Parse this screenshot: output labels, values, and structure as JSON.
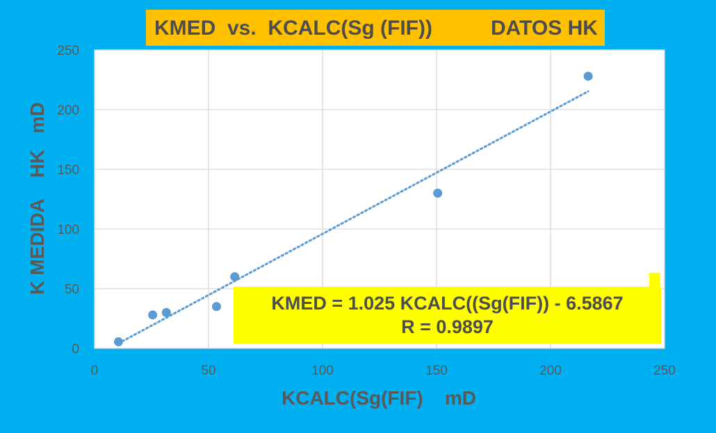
{
  "chart_data": {
    "type": "scatter",
    "title": "KMED  vs.  KCALC(Sg (FIF))",
    "title_right": "DATOS HK",
    "xlabel": "KCALC(Sg(FIF)    mD",
    "ylabel": "K MEDIDA    HK   mD",
    "xlim": [
      0,
      250
    ],
    "ylim": [
      0,
      250
    ],
    "x_ticks": [
      0,
      50,
      100,
      150,
      200,
      250
    ],
    "y_ticks": [
      0,
      50,
      100,
      150,
      200,
      250
    ],
    "grid": "vertical and horizontal",
    "points": [
      {
        "x": 10.5,
        "y": 5.5
      },
      {
        "x": 25.5,
        "y": 28
      },
      {
        "x": 31.5,
        "y": 30
      },
      {
        "x": 53.5,
        "y": 35
      },
      {
        "x": 61.5,
        "y": 60
      },
      {
        "x": 150.5,
        "y": 130
      },
      {
        "x": 216.5,
        "y": 228
      }
    ],
    "trendline": {
      "slope": 1.025,
      "intercept": -6.5867,
      "x_range": [
        10.5,
        216.5
      ],
      "style": "dotted"
    },
    "annotation": {
      "line1": "KMED = 1.025 KCALC((Sg(FIF)) - 6.5867",
      "line2": "R = 0.9897"
    },
    "colors": {
      "background": "#00b0f0",
      "plot_area": "#ffffff",
      "title_box": "#ffc000",
      "equation_box": "#ffff00",
      "marker": "#5b9bd5",
      "trendline": "#5b9bd5",
      "gridline": "#d9d9d9"
    }
  }
}
